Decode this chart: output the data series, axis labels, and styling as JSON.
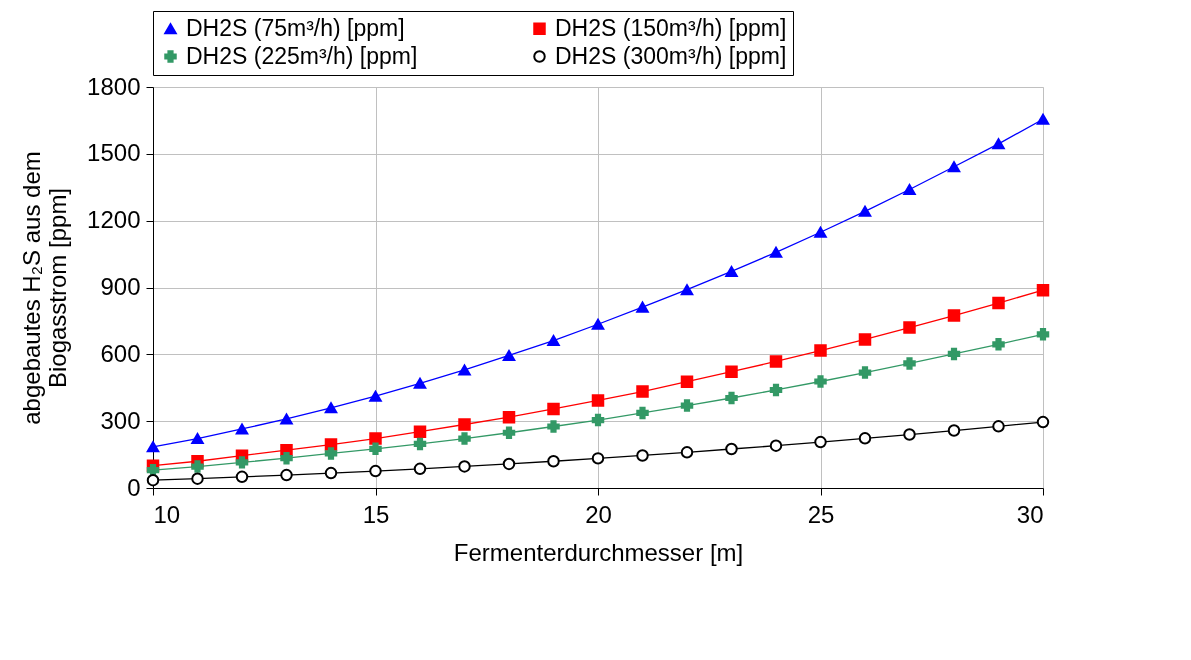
{
  "chart_data": {
    "type": "line",
    "xlabel": "Fermenterdurchmesser [m]",
    "ylabel": "abgebautes H₂S aus dem\nBiogasstrom [ppm]",
    "x": [
      10,
      11,
      12,
      13,
      14,
      15,
      16,
      17,
      18,
      19,
      20,
      21,
      22,
      23,
      24,
      25,
      26,
      27,
      28,
      29,
      30
    ],
    "xlim": [
      10,
      30
    ],
    "xticks": [
      10,
      15,
      20,
      25,
      30
    ],
    "ylim": [
      0,
      1800
    ],
    "yticks": [
      0,
      300,
      600,
      900,
      {
        "value": 1200,
        "label": "1200"
      },
      {
        "value": 1500,
        "label": "1500"
      },
      {
        "value": 1800,
        "label": "1800"
      }
    ],
    "grid": true,
    "legend": "top",
    "line_style": "solid",
    "series": [
      {
        "name": "DH2S (75m³/h) [ppm]",
        "color": "#0000ff",
        "marker": "triangle",
        "values": [
          185,
          222,
          265,
          310,
          360,
          412,
          470,
          530,
          595,
          662,
          735,
          812,
          890,
          972,
          1058,
          1148,
          1242,
          1340,
          1442,
          1545,
          1655
        ]
      },
      {
        "name": "DH2S (150m³/h) [ppm]",
        "color": "#ff0000",
        "marker": "square",
        "values": [
          100,
          120,
          145,
          170,
          195,
          222,
          253,
          285,
          318,
          355,
          393,
          433,
          477,
          522,
          568,
          617,
          667,
          720,
          774,
          830,
          888
        ]
      },
      {
        "name": "DH2S (225m³/h) [ppm]",
        "color": "#339966",
        "marker": "cross",
        "values": [
          80,
          96,
          115,
          134,
          155,
          176,
          198,
          222,
          248,
          276,
          305,
          337,
          370,
          404,
          440,
          478,
          518,
          559,
          602,
          645,
          690
        ]
      },
      {
        "name": "DH2S (300m³/h) [ppm]",
        "color": "#000000",
        "marker": "circle",
        "values": [
          35,
          42,
          50,
          58,
          67,
          76,
          86,
          97,
          108,
          120,
          133,
          146,
          160,
          175,
          190,
          206,
          223,
          240,
          258,
          277,
          296
        ]
      }
    ]
  }
}
